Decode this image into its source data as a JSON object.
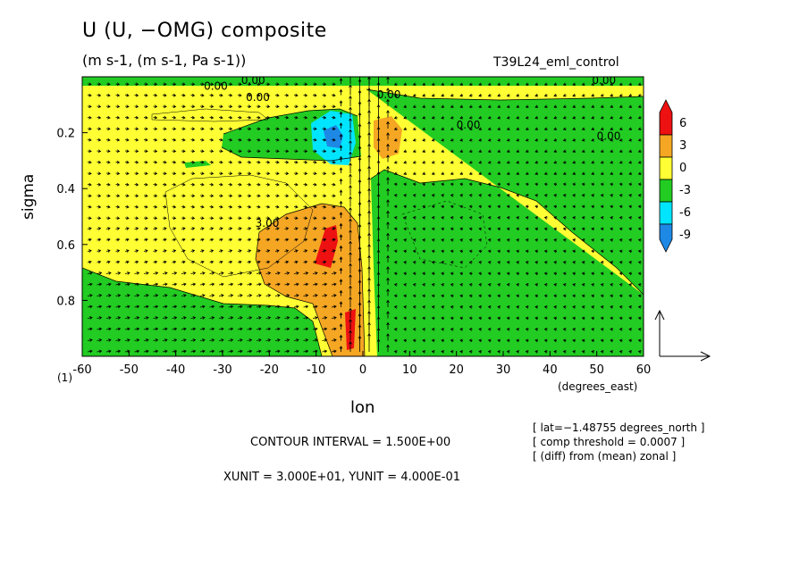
{
  "title": "U (U, −OMG) composite",
  "subtitle": "(m s-1, (m s-1, Pa s-1))",
  "run_label": "T39L24_eml_control",
  "contour_interval": "CONTOUR INTERVAL = 1.500E+00",
  "vector_units": "XUNIT = 3.000E+01, YUNIT = 4.000E-01",
  "info_lines": [
    "[ lat=−1.48755 degrees_north ]",
    "[ comp threshold = 0.0007 ]",
    "[ (diff) from (mean) zonal ]"
  ],
  "x_units_label": "(degrees_east)",
  "footnote": "(1)",
  "colors": {
    "neg9": "#1e88e5",
    "neg6": "#00e5ff",
    "neg3": "#22cc22",
    "pos0": "#ffff33",
    "pos3": "#f5a623",
    "pos6": "#ee1111"
  },
  "chart_data": {
    "type": "heatmap",
    "xlabel": "lon",
    "ylabel": "sigma",
    "xlim": [
      -60,
      60
    ],
    "ylim": [
      1.0,
      0.0
    ],
    "x_ticks": [
      "-60",
      "-50",
      "-40",
      "-30",
      "-20",
      "-10",
      "0",
      "10",
      "20",
      "30",
      "40",
      "50",
      "60"
    ],
    "y_ticks": [
      "0.2",
      "0.4",
      "0.6",
      "0.8"
    ],
    "colorbar": {
      "levels": [
        "6",
        "3",
        "0",
        "-3",
        "-6",
        "-9"
      ]
    },
    "contour_labels": [
      {
        "text": "0.00",
        "x": -34,
        "y": 0.03
      },
      {
        "text": "0.00",
        "x": -26,
        "y": 0.01
      },
      {
        "text": "0.00",
        "x": -25,
        "y": 0.07
      },
      {
        "text": "0.00",
        "x": 3,
        "y": 0.06
      },
      {
        "text": "0.00",
        "x": 20,
        "y": 0.17
      },
      {
        "text": "0.00",
        "x": 50,
        "y": 0.21
      },
      {
        "text": "0.00",
        "x": 49,
        "y": 0.01
      },
      {
        "text": "3.00",
        "x": -23,
        "y": 0.52
      }
    ]
  }
}
